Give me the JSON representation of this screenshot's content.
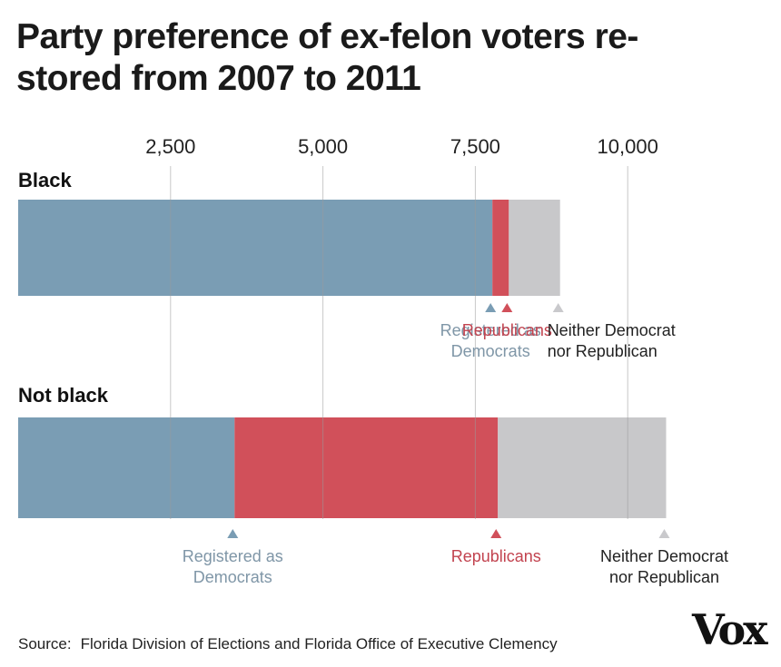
{
  "chart_data": {
    "type": "bar",
    "orientation": "horizontal",
    "stacked": true,
    "title": "Party preference of ex-felon voters re-stored from 2007 to 2011",
    "title_lines": [
      "Party preference of ex-felon voters re-",
      "stored from 2007 to 2011"
    ],
    "x_ticks": [
      2500,
      5000,
      7500,
      10000
    ],
    "x_tick_labels": [
      "2,500",
      "5,000",
      "7,500",
      "10,000"
    ],
    "xlim": [
      0,
      12500
    ],
    "grid": true,
    "groups": [
      {
        "name": "Black",
        "segments": [
          {
            "label_lines": [
              "Registered as",
              "Democrats"
            ],
            "value": 7780,
            "color": "#7a9db4",
            "label_color": "#7f96a7"
          },
          {
            "label_lines": [
              "Republicans"
            ],
            "value": 270,
            "color": "#d1505a",
            "label_color": "#c2434f"
          },
          {
            "label_lines": [
              "Neither Democrat",
              "nor Republican"
            ],
            "value": 840,
            "color": "#c8c8ca",
            "label_color": "#222222"
          }
        ]
      },
      {
        "name": "Not black",
        "segments": [
          {
            "label_lines": [
              "Registered as",
              "Democrats"
            ],
            "value": 3550,
            "color": "#7a9db4",
            "label_color": "#7f96a7"
          },
          {
            "label_lines": [
              "Republicans"
            ],
            "value": 4320,
            "color": "#d1505a",
            "label_color": "#c2434f"
          },
          {
            "label_lines": [
              "Neither Democrat",
              "nor Republican"
            ],
            "value": 2760,
            "color": "#c8c8ca",
            "label_color": "#222222"
          }
        ]
      }
    ]
  },
  "source": {
    "label": "Source:",
    "text": "Florida Division of Elections and Florida Office of Executive Clemency"
  },
  "logo": {
    "text": "Vox"
  }
}
